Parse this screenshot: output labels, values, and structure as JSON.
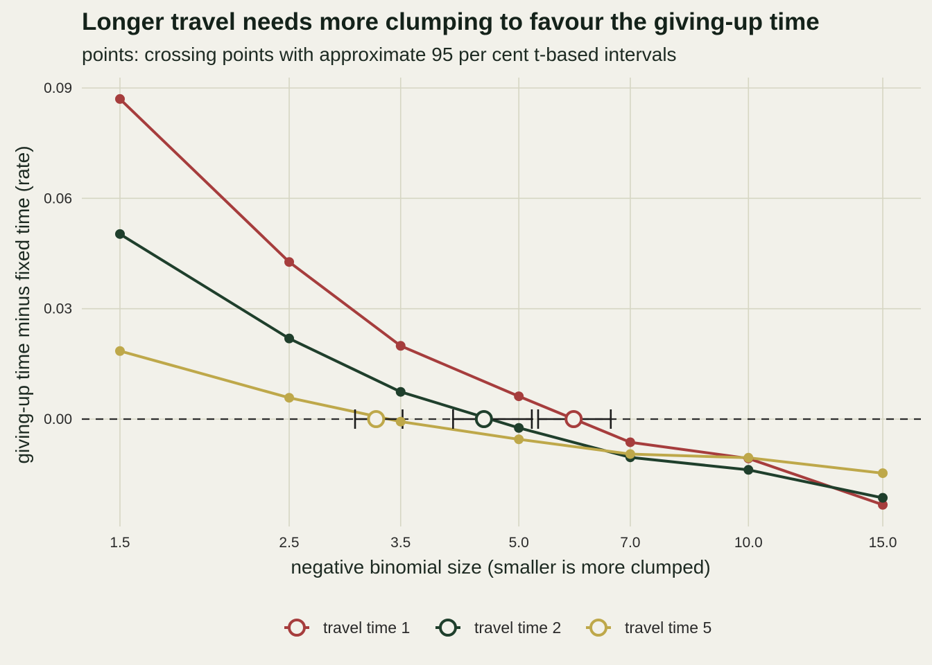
{
  "chart_data": {
    "type": "line",
    "title": "Longer travel needs more clumping to favour the giving-up time",
    "subtitle": "points: crossing points with approximate 95 per cent t-based intervals",
    "xlabel": "negative binomial size (smaller is more clumped)",
    "ylabel": "giving-up time minus fixed time (rate)",
    "x_scale": "log",
    "x_ticks": [
      1.5,
      2.5,
      3.5,
      5.0,
      7.0,
      10.0,
      15.0
    ],
    "x_tick_labels": [
      "1.5",
      "2.5",
      "3.5",
      "5.0",
      "7.0",
      "10.0",
      "15.0"
    ],
    "y_ticks": [
      0.0,
      0.03,
      0.06,
      0.09
    ],
    "y_tick_labels": [
      "0.00",
      "0.03",
      "0.06",
      "0.09"
    ],
    "ylim": [
      -0.027,
      0.092
    ],
    "xlim": [
      1.32,
      17.0
    ],
    "grid": true,
    "reference_line": {
      "y": 0.0,
      "style": "dashed"
    },
    "legend_position": "bottom",
    "x": [
      1.5,
      2.5,
      3.5,
      5.0,
      7.0,
      10.0,
      15.0
    ],
    "series": [
      {
        "name": "travel time 1",
        "color": "#a63d3d",
        "values": [
          0.087,
          0.0427,
          0.0199,
          0.0062,
          -0.0063,
          -0.0107,
          -0.0233
        ],
        "crossing": {
          "x": 5.9,
          "ci": [
            5.3,
            6.6
          ]
        }
      },
      {
        "name": "travel time 2",
        "color": "#1f3f2c",
        "values": [
          0.0503,
          0.0219,
          0.0074,
          -0.0024,
          -0.0104,
          -0.0138,
          -0.0214
        ],
        "crossing": {
          "x": 4.5,
          "ci": [
            4.1,
            5.2
          ]
        }
      },
      {
        "name": "travel time 5",
        "color": "#bea84a",
        "values": [
          0.0185,
          0.0058,
          -0.0007,
          -0.0055,
          -0.0095,
          -0.0105,
          -0.0147
        ],
        "crossing": {
          "x": 3.25,
          "ci": [
            3.05,
            3.52
          ]
        }
      }
    ]
  }
}
